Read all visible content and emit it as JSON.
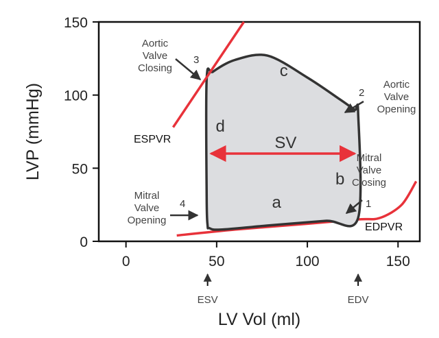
{
  "chart_data": {
    "type": "line",
    "title": "",
    "xlabel": "LV Vol (ml)",
    "ylabel": "LVP (mmHg)",
    "xlim": [
      -15,
      162
    ],
    "ylim": [
      0,
      150
    ],
    "xticks": [
      0,
      50,
      100,
      150
    ],
    "yticks": [
      0,
      50,
      100,
      150
    ],
    "grid": false,
    "colors": {
      "loop_fill": "#dcdde0",
      "loop_stroke": "#333333",
      "relation": "#e8323a",
      "text": "#222222"
    },
    "pv_loop": {
      "x": [
        45,
        46,
        52,
        80,
        110,
        128,
        128,
        126,
        118,
        100,
        78,
        60,
        48,
        44.5,
        44.5,
        45
      ],
      "y": [
        11,
        9,
        8,
        11,
        14,
        16,
        88,
        90,
        97,
        112,
        127,
        124,
        116,
        111,
        30,
        11
      ]
    },
    "espvr": {
      "name": "ESPVR",
      "x": [
        26,
        65
      ],
      "y": [
        78,
        150
      ]
    },
    "edpvr": {
      "name": "EDPVR",
      "x": [
        28,
        60,
        100,
        128,
        140,
        152,
        160
      ],
      "y": [
        4,
        8,
        12,
        15,
        16,
        25,
        41
      ]
    },
    "sv_arrow": {
      "label": "SV",
      "x": [
        45,
        128
      ],
      "y": [
        60,
        60
      ]
    },
    "region_labels": [
      {
        "text": "a",
        "x": 83,
        "y": 23
      },
      {
        "text": "b",
        "x": 118,
        "y": 39
      },
      {
        "text": "c",
        "x": 87,
        "y": 113
      },
      {
        "text": "d",
        "x": 52,
        "y": 75
      }
    ],
    "annotations": [
      {
        "number": "1",
        "lines": [
          "Mitral",
          "Valve",
          "Closing"
        ],
        "point": [
          128,
          16
        ]
      },
      {
        "number": "2",
        "lines": [
          "Aortic",
          "Valve",
          "Opening"
        ],
        "point": [
          128,
          88
        ]
      },
      {
        "number": "3",
        "lines": [
          "Aortic",
          "Valve",
          "Closing"
        ],
        "point": [
          45,
          111
        ]
      },
      {
        "number": "4",
        "lines": [
          "Mitral",
          "Valve",
          "Opening"
        ],
        "point": [
          45,
          15
        ]
      }
    ],
    "relation_labels": [
      "ESPVR",
      "EDPVR"
    ],
    "markers": [
      {
        "label": "ESV",
        "x": 45
      },
      {
        "label": "EDV",
        "x": 128
      }
    ]
  }
}
